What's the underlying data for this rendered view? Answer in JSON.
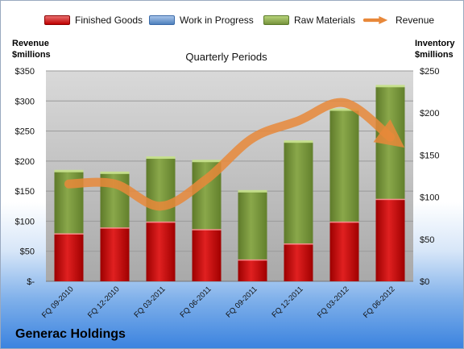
{
  "legend": {
    "finished_goods": "Finished Goods",
    "work_in_progress": "Work in Progress",
    "raw_materials": "Raw Materials",
    "revenue": "Revenue"
  },
  "left_axis_title": [
    "Revenue",
    "$millions"
  ],
  "right_axis_title": [
    "Inventory",
    "$millions"
  ],
  "plot_title": "Quarterly Periods",
  "company": "Generac Holdings",
  "colors": {
    "finished_goods": "#c00000",
    "work_in_progress": "#4f81bd",
    "raw_materials": "#77933c",
    "revenue": "#e8883a",
    "plot_bg": "#c8c8c8"
  },
  "chart_data": {
    "type": "bar",
    "stacked": true,
    "title": "Quarterly Periods",
    "categories": [
      "FQ 09-2010",
      "FQ 12-2010",
      "FQ 03-2011",
      "FQ 06-2011",
      "FQ 09-2011",
      "FQ 12-2011",
      "FQ 03-2012",
      "FQ 06-2012"
    ],
    "series": [
      {
        "name": "Finished Goods",
        "axis": "right",
        "values": [
          57,
          64,
          71,
          62,
          26,
          45,
          71,
          98
        ]
      },
      {
        "name": "Work in Progress",
        "axis": "right",
        "values": [
          0,
          0,
          0,
          0,
          0,
          0,
          0,
          0
        ]
      },
      {
        "name": "Raw Materials",
        "axis": "right",
        "values": [
          74,
          65,
          76,
          81,
          81,
          121,
          133,
          134
        ]
      },
      {
        "name": "Revenue",
        "type": "line",
        "axis": "left",
        "values": [
          162,
          162,
          125,
          170,
          238,
          267,
          297,
          240
        ]
      }
    ],
    "ylabel_left": "Revenue $millions",
    "ylabel_right": "Inventory $millions",
    "ylim_left": [
      0,
      350
    ],
    "ylim_right": [
      0,
      250
    ],
    "left_ticks": [
      "$-",
      "$50",
      "$100",
      "$150",
      "$200",
      "$250",
      "$300",
      "$350"
    ],
    "right_ticks": [
      "$0",
      "$50",
      "$100",
      "$150",
      "$200",
      "$250"
    ],
    "grid": true,
    "legend_position": "top"
  }
}
